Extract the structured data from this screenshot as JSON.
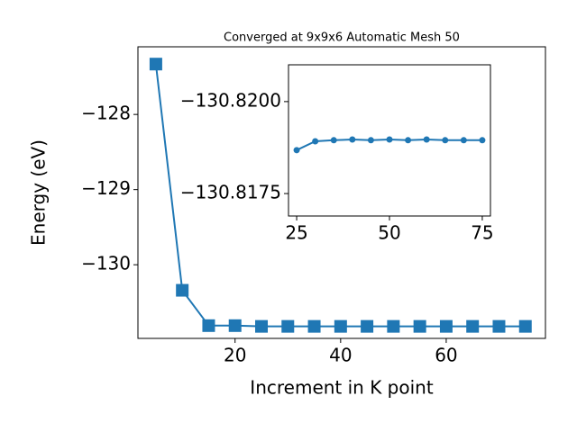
{
  "chart_data": [
    {
      "type": "line",
      "title": "Converged at 9x9x6 Automatic Mesh 50",
      "xlabel": "Increment in K point",
      "ylabel": "Energy (eV)",
      "marker": "square",
      "color": "#1f77b4",
      "x": [
        5,
        10,
        15,
        20,
        25,
        30,
        35,
        40,
        45,
        50,
        55,
        60,
        65,
        70,
        75
      ],
      "series": [
        {
          "values": [
            -127.33,
            -130.34,
            -130.81,
            -130.81,
            -130.82,
            -130.82,
            -130.82,
            -130.82,
            -130.82,
            -130.82,
            -130.82,
            -130.82,
            -130.82,
            -130.82,
            -130.82
          ],
          "color": "#1f77b4"
        }
      ],
      "xlim": [
        1.6,
        78.8
      ],
      "ylim": [
        -130.98,
        -127.1
      ],
      "xticks": [
        20,
        40,
        60
      ],
      "yticks": [
        {
          "value": -128,
          "label": "−128"
        },
        {
          "value": -129,
          "label": "−129"
        },
        {
          "value": -130,
          "label": "−130"
        }
      ]
    },
    {
      "type": "line",
      "marker": "circle",
      "color": "#1f77b4",
      "x": [
        25,
        30,
        35,
        40,
        45,
        50,
        55,
        60,
        65,
        70,
        75
      ],
      "series": [
        {
          "values": [
            -130.81868,
            -130.81892,
            -130.81895,
            -130.81897,
            -130.81895,
            -130.81897,
            -130.81895,
            -130.81897,
            -130.81895,
            -130.81895,
            -130.81895
          ],
          "color": "#1f77b4"
        }
      ],
      "xlim": [
        22.8,
        77.2
      ],
      "ylim": [
        -130.81689,
        -130.821
      ],
      "xticks": [
        25,
        50,
        75
      ],
      "yticks": [
        {
          "value": -130.82,
          "label": "−130.8200"
        },
        {
          "value": -130.8175,
          "label": "−130.8175"
        }
      ]
    }
  ]
}
